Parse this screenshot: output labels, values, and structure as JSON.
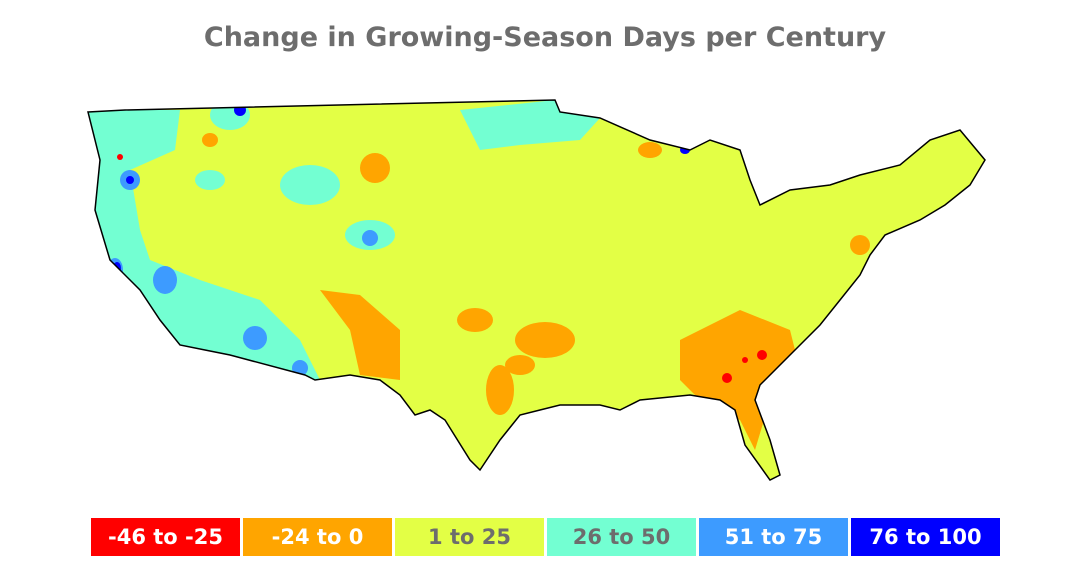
{
  "title": "Change in Growing-Season Days per Century",
  "legend": [
    {
      "label": "-46 to -25",
      "color": "#ff0000",
      "text": "#ffffff"
    },
    {
      "label": "-24 to 0",
      "color": "#ffa500",
      "text": "#ffffff"
    },
    {
      "label": "1 to 25",
      "color": "#e3ff45",
      "text": "#6d6d6d"
    },
    {
      "label": "26 to 50",
      "color": "#73ffd2",
      "text": "#6d6d6d"
    },
    {
      "label": "51 to 75",
      "color": "#3d9bff",
      "text": "#ffffff"
    },
    {
      "label": "76 to 100",
      "color": "#0000ff",
      "text": "#ffffff"
    }
  ]
}
